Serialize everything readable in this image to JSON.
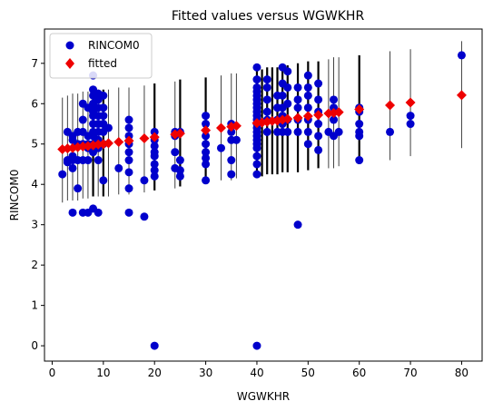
{
  "chart_data": {
    "type": "scatter",
    "title": "Fitted values versus WGWKHR",
    "xlabel": "WGWKHR",
    "ylabel": "RINCOM0",
    "xlim": [
      -1.5,
      84
    ],
    "ylim": [
      -0.38,
      7.85
    ],
    "xticks": [
      0,
      10,
      20,
      30,
      40,
      50,
      60,
      70,
      80
    ],
    "yticks": [
      0,
      1,
      2,
      3,
      4,
      5,
      6,
      7
    ],
    "grid": false,
    "legend": {
      "placement": "top-left"
    },
    "series": [
      {
        "name": "RINCOM0",
        "marker": "circle",
        "color": "#0000cc",
        "points": [
          [
            2,
            4.25
          ],
          [
            3,
            4.55
          ],
          [
            3,
            4.6
          ],
          [
            3,
            5.3
          ],
          [
            4,
            3.3
          ],
          [
            4,
            4.4
          ],
          [
            4,
            4.7
          ],
          [
            4,
            5.2
          ],
          [
            4,
            5.1
          ],
          [
            4,
            4.6
          ],
          [
            5,
            4.6
          ],
          [
            5,
            3.9
          ],
          [
            5,
            5.3
          ],
          [
            5,
            5.0
          ],
          [
            6,
            3.3
          ],
          [
            6,
            4.6
          ],
          [
            6,
            5.0
          ],
          [
            6,
            5.6
          ],
          [
            6,
            6.0
          ],
          [
            6,
            5.3
          ],
          [
            7,
            3.3
          ],
          [
            7,
            4.6
          ],
          [
            7,
            5.0
          ],
          [
            7,
            5.2
          ],
          [
            7,
            5.9
          ],
          [
            7,
            4.9
          ],
          [
            8,
            3.4
          ],
          [
            8,
            5.0
          ],
          [
            8,
            5.2
          ],
          [
            8,
            5.3
          ],
          [
            8,
            5.5
          ],
          [
            8,
            5.7
          ],
          [
            8,
            5.8
          ],
          [
            8,
            5.9
          ],
          [
            8,
            6.0
          ],
          [
            8,
            6.2
          ],
          [
            8,
            6.35
          ],
          [
            8,
            6.7
          ],
          [
            8,
            4.8
          ],
          [
            9,
            3.3
          ],
          [
            9,
            4.9
          ],
          [
            9,
            5.1
          ],
          [
            9,
            5.3
          ],
          [
            9,
            5.5
          ],
          [
            9,
            5.7
          ],
          [
            9,
            5.9
          ],
          [
            9,
            6.1
          ],
          [
            9,
            6.25
          ],
          [
            9,
            4.6
          ],
          [
            10,
            4.1
          ],
          [
            10,
            5.0
          ],
          [
            10,
            5.3
          ],
          [
            10,
            5.5
          ],
          [
            10,
            5.7
          ],
          [
            10,
            5.9
          ],
          [
            10,
            6.2
          ],
          [
            11,
            5.4
          ],
          [
            13,
            4.4
          ],
          [
            15,
            3.3
          ],
          [
            15,
            3.9
          ],
          [
            15,
            4.3
          ],
          [
            15,
            4.6
          ],
          [
            15,
            4.8
          ],
          [
            15,
            5.0
          ],
          [
            15,
            5.2
          ],
          [
            15,
            5.4
          ],
          [
            15,
            5.6
          ],
          [
            18,
            3.2
          ],
          [
            18,
            4.1
          ],
          [
            20,
            0.0
          ],
          [
            20,
            4.2
          ],
          [
            20,
            4.35
          ],
          [
            20,
            4.5
          ],
          [
            20,
            4.7
          ],
          [
            20,
            4.8
          ],
          [
            20,
            4.95
          ],
          [
            20,
            5.1
          ],
          [
            20,
            5.3
          ],
          [
            24,
            4.4
          ],
          [
            24,
            4.8
          ],
          [
            24,
            5.2
          ],
          [
            24,
            5.3
          ],
          [
            25,
            4.2
          ],
          [
            25,
            4.35
          ],
          [
            25,
            4.6
          ],
          [
            25,
            5.3
          ],
          [
            30,
            4.1
          ],
          [
            30,
            4.5
          ],
          [
            30,
            4.65
          ],
          [
            30,
            4.8
          ],
          [
            30,
            5.0
          ],
          [
            30,
            5.2
          ],
          [
            30,
            5.5
          ],
          [
            30,
            5.7
          ],
          [
            33,
            4.9
          ],
          [
            35,
            4.25
          ],
          [
            35,
            4.6
          ],
          [
            35,
            5.1
          ],
          [
            35,
            5.3
          ],
          [
            35,
            5.5
          ],
          [
            36,
            5.1
          ],
          [
            40,
            0.0
          ],
          [
            40,
            4.25
          ],
          [
            40,
            4.5
          ],
          [
            40,
            4.7
          ],
          [
            40,
            4.9
          ],
          [
            40,
            5.0
          ],
          [
            40,
            5.1
          ],
          [
            40,
            5.2
          ],
          [
            40,
            5.3
          ],
          [
            40,
            5.4
          ],
          [
            40,
            5.5
          ],
          [
            40,
            5.6
          ],
          [
            40,
            5.7
          ],
          [
            40,
            5.8
          ],
          [
            40,
            5.9
          ],
          [
            40,
            6.0
          ],
          [
            40,
            6.1
          ],
          [
            40,
            6.2
          ],
          [
            40,
            6.3
          ],
          [
            40,
            6.4
          ],
          [
            40,
            6.6
          ],
          [
            40,
            6.9
          ],
          [
            42,
            5.3
          ],
          [
            42,
            5.6
          ],
          [
            42,
            5.8
          ],
          [
            42,
            6.1
          ],
          [
            42,
            6.4
          ],
          [
            42,
            6.6
          ],
          [
            44,
            5.3
          ],
          [
            44,
            5.6
          ],
          [
            44,
            5.9
          ],
          [
            44,
            6.2
          ],
          [
            45,
            5.3
          ],
          [
            45,
            5.5
          ],
          [
            45,
            5.7
          ],
          [
            45,
            5.9
          ],
          [
            45,
            6.2
          ],
          [
            45,
            6.5
          ],
          [
            45,
            6.9
          ],
          [
            46,
            5.3
          ],
          [
            46,
            5.6
          ],
          [
            46,
            6.0
          ],
          [
            46,
            6.4
          ],
          [
            46,
            6.8
          ],
          [
            48,
            3.0
          ],
          [
            48,
            5.3
          ],
          [
            48,
            5.6
          ],
          [
            48,
            5.9
          ],
          [
            48,
            6.1
          ],
          [
            48,
            6.4
          ],
          [
            50,
            5.0
          ],
          [
            50,
            5.3
          ],
          [
            50,
            5.6
          ],
          [
            50,
            5.9
          ],
          [
            50,
            6.2
          ],
          [
            50,
            6.4
          ],
          [
            50,
            6.7
          ],
          [
            52,
            4.85
          ],
          [
            52,
            5.2
          ],
          [
            52,
            5.5
          ],
          [
            52,
            5.8
          ],
          [
            52,
            6.1
          ],
          [
            52,
            6.5
          ],
          [
            54,
            5.3
          ],
          [
            55,
            5.2
          ],
          [
            55,
            5.6
          ],
          [
            55,
            5.9
          ],
          [
            55,
            6.1
          ],
          [
            56,
            5.3
          ],
          [
            60,
            4.6
          ],
          [
            60,
            5.2
          ],
          [
            60,
            5.3
          ],
          [
            60,
            5.5
          ],
          [
            60,
            5.8
          ],
          [
            60,
            5.9
          ],
          [
            66,
            5.3
          ],
          [
            70,
            5.5
          ],
          [
            70,
            5.7
          ],
          [
            80,
            7.2
          ]
        ]
      },
      {
        "name": "fitted",
        "marker": "diamond",
        "color": "#ee0000",
        "points": [
          [
            2,
            4.87
          ],
          [
            3,
            4.89
          ],
          [
            4,
            4.9
          ],
          [
            5,
            4.92
          ],
          [
            6,
            4.94
          ],
          [
            7,
            4.95
          ],
          [
            8,
            4.97
          ],
          [
            9,
            4.99
          ],
          [
            10,
            5.0
          ],
          [
            11,
            5.02
          ],
          [
            13,
            5.05
          ],
          [
            15,
            5.08
          ],
          [
            18,
            5.14
          ],
          [
            20,
            5.17
          ],
          [
            24,
            5.24
          ],
          [
            25,
            5.26
          ],
          [
            30,
            5.34
          ],
          [
            33,
            5.4
          ],
          [
            35,
            5.43
          ],
          [
            36,
            5.45
          ],
          [
            40,
            5.52
          ],
          [
            41,
            5.53
          ],
          [
            42,
            5.55
          ],
          [
            43,
            5.57
          ],
          [
            44,
            5.58
          ],
          [
            45,
            5.6
          ],
          [
            46,
            5.62
          ],
          [
            48,
            5.65
          ],
          [
            50,
            5.69
          ],
          [
            52,
            5.72
          ],
          [
            54,
            5.76
          ],
          [
            55,
            5.77
          ],
          [
            56,
            5.79
          ],
          [
            60,
            5.86
          ],
          [
            66,
            5.96
          ],
          [
            70,
            6.03
          ],
          [
            80,
            6.21
          ]
        ]
      }
    ],
    "error_bars": {
      "color": "#000000",
      "bars": [
        [
          2,
          3.55,
          6.15
        ],
        [
          3,
          3.6,
          6.2
        ],
        [
          4,
          3.6,
          6.25
        ],
        [
          5,
          3.6,
          6.25
        ],
        [
          6,
          3.65,
          6.3
        ],
        [
          7,
          3.65,
          6.3
        ],
        [
          8,
          3.7,
          6.3
        ],
        [
          9,
          3.7,
          6.35
        ],
        [
          10,
          3.7,
          6.35
        ],
        [
          11,
          3.7,
          6.35
        ],
        [
          13,
          3.75,
          6.4
        ],
        [
          15,
          3.75,
          6.4
        ],
        [
          18,
          3.8,
          6.45
        ],
        [
          20,
          3.85,
          6.5
        ],
        [
          24,
          3.9,
          6.55
        ],
        [
          25,
          3.95,
          6.6
        ],
        [
          30,
          4.05,
          6.65
        ],
        [
          33,
          4.1,
          6.7
        ],
        [
          35,
          4.1,
          6.75
        ],
        [
          36,
          4.15,
          6.75
        ],
        [
          40,
          4.2,
          6.85
        ],
        [
          41,
          4.2,
          6.85
        ],
        [
          42,
          4.25,
          6.9
        ],
        [
          43,
          4.25,
          6.9
        ],
        [
          44,
          4.25,
          6.9
        ],
        [
          45,
          4.3,
          6.95
        ],
        [
          46,
          4.3,
          6.95
        ],
        [
          48,
          4.3,
          7.0
        ],
        [
          50,
          4.35,
          7.05
        ],
        [
          52,
          4.4,
          7.05
        ],
        [
          54,
          4.4,
          7.1
        ],
        [
          55,
          4.4,
          7.15
        ],
        [
          56,
          4.45,
          7.15
        ],
        [
          60,
          4.5,
          7.2
        ],
        [
          66,
          4.6,
          7.3
        ],
        [
          70,
          4.7,
          7.35
        ],
        [
          80,
          4.9,
          7.55
        ]
      ],
      "heavy_x": [
        8,
        10,
        20,
        25,
        30,
        40,
        41,
        42,
        43,
        44,
        45,
        46,
        48,
        50,
        52,
        60
      ]
    }
  }
}
